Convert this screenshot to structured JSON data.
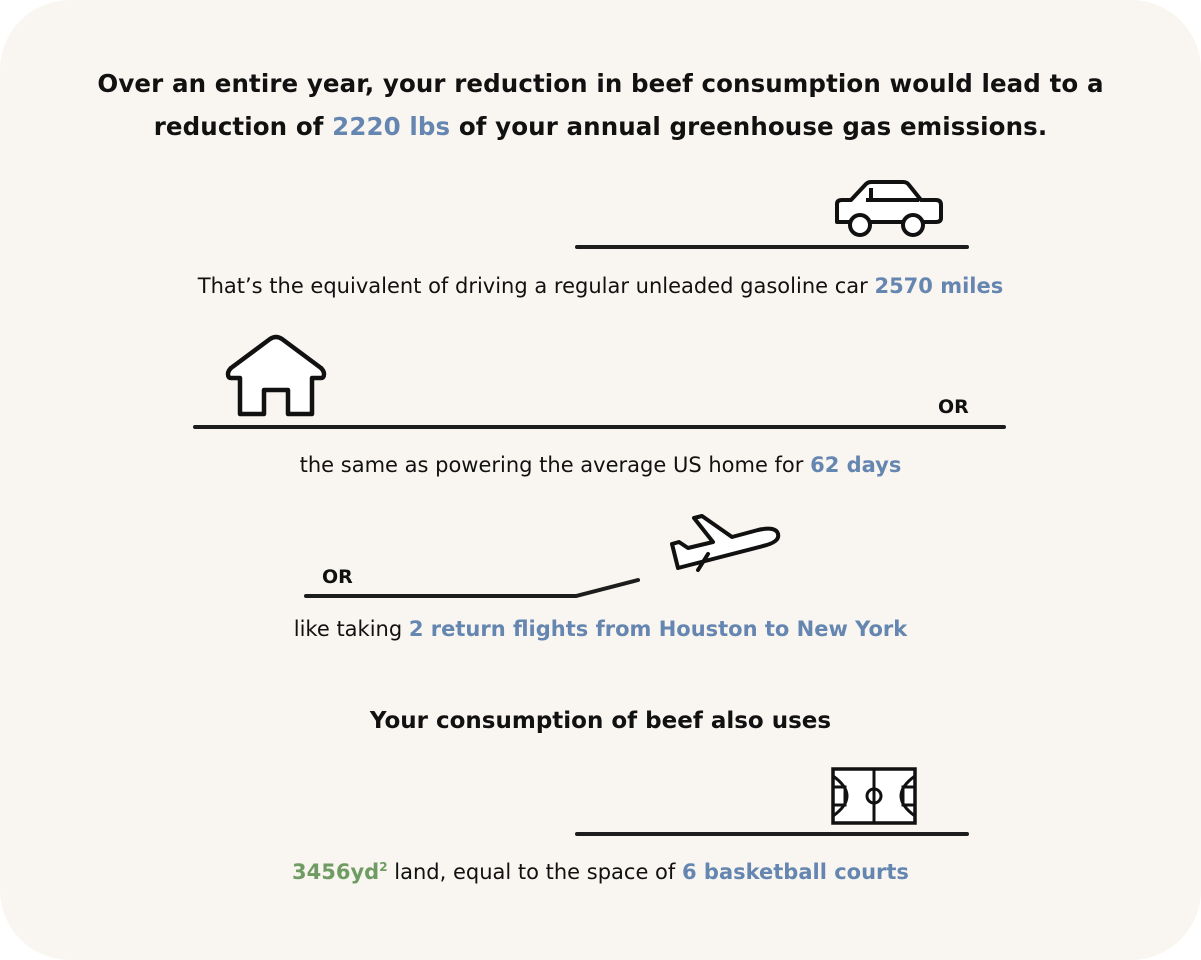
{
  "headline": {
    "line1": "Over an entire year, your reduction in beef consumption would lead to a",
    "line2_pre": "reduction of ",
    "amount": "2220 lbs",
    "line2_post": " of your annual greenhouse gas emissions."
  },
  "car": {
    "icon": "car-icon",
    "text": "That’s the equivalent of driving a regular unleaded gasoline car ",
    "value": "2570 miles"
  },
  "home": {
    "icon": "house-icon",
    "or_label": "OR",
    "text": "the same as powering the average US home for ",
    "value": "62 days"
  },
  "flight": {
    "icon": "airplane-icon",
    "or_label": "OR",
    "text": "like taking ",
    "value": "2 return flights from Houston to New York"
  },
  "land": {
    "heading": "Your consumption of beef also uses",
    "icon": "basketball-court-icon",
    "area_value": "3456yd",
    "area_sup": "2",
    "text": " land, equal to the space of ",
    "value": "6 basketball courts"
  },
  "colors": {
    "accent": "#6586b0",
    "green": "#6f9c62",
    "background": "#f9f5f0"
  }
}
